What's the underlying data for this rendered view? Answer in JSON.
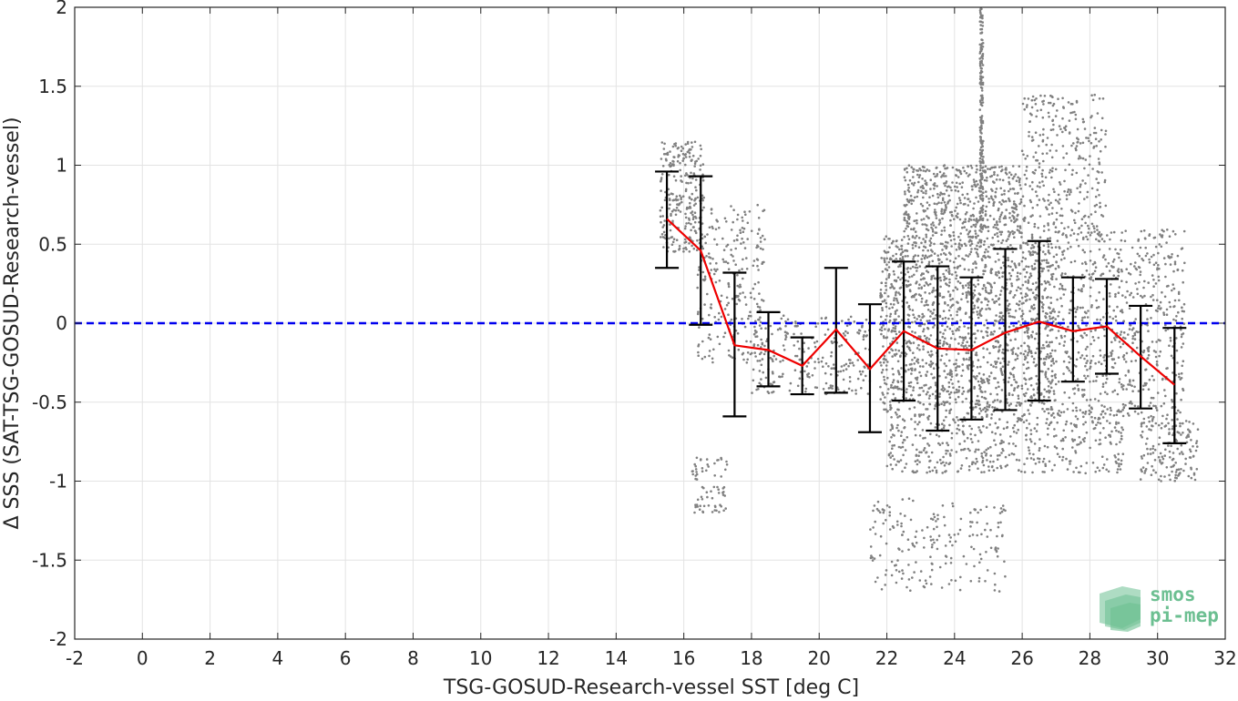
{
  "chart_data": {
    "type": "scatter",
    "title": "",
    "xlabel": "TSG-GOSUD-Research-vessel SST [deg C]",
    "ylabel": "Δ SSS (SAT-TSG-GOSUD-Research-vessel)",
    "xlim": [
      -2,
      32
    ],
    "ylim": [
      -2,
      2
    ],
    "xticks": [
      -2,
      0,
      2,
      4,
      6,
      8,
      10,
      12,
      14,
      16,
      18,
      20,
      22,
      24,
      26,
      28,
      30,
      32
    ],
    "yticks": [
      -2,
      -1.5,
      -1,
      -0.5,
      0,
      0.5,
      1,
      1.5,
      2
    ],
    "xtick_labels": [
      "-2",
      "0",
      "2",
      "4",
      "6",
      "8",
      "10",
      "12",
      "14",
      "16",
      "18",
      "20",
      "22",
      "24",
      "26",
      "28",
      "30",
      "32"
    ],
    "ytick_labels": [
      "-2",
      "-1.5",
      "-1",
      "-0.5",
      "0",
      "0.5",
      "1",
      "1.5",
      "2"
    ],
    "grid": true,
    "reference_line": {
      "y": 0,
      "style": "dashed",
      "color": "#0000ee"
    },
    "binned_stats": {
      "color_mean": "#ee0000",
      "color_errorbar": "#000000",
      "x": [
        15.5,
        16.5,
        17.5,
        18.5,
        19.5,
        20.5,
        21.5,
        22.5,
        23.5,
        24.5,
        25.5,
        26.5,
        27.5,
        28.5,
        29.5,
        30.5
      ],
      "mean": [
        0.66,
        0.46,
        -0.14,
        -0.17,
        -0.27,
        -0.04,
        -0.29,
        -0.05,
        -0.16,
        -0.17,
        -0.06,
        0.01,
        -0.05,
        -0.02,
        -0.21,
        -0.39
      ],
      "upper": [
        0.96,
        0.93,
        0.32,
        0.07,
        -0.09,
        0.35,
        0.12,
        0.39,
        0.36,
        0.29,
        0.47,
        0.52,
        0.29,
        0.28,
        0.11,
        -0.03
      ],
      "lower": [
        0.35,
        -0.01,
        -0.59,
        -0.4,
        -0.45,
        -0.44,
        -0.69,
        -0.49,
        -0.68,
        -0.61,
        -0.55,
        -0.49,
        -0.37,
        -0.32,
        -0.54,
        -0.76
      ]
    },
    "scatter_color": "#808080",
    "scatter_clusters": [
      {
        "x0": 15.3,
        "x1": 16.6,
        "y0": 0.45,
        "y1": 1.15,
        "n": 260
      },
      {
        "x0": 16.4,
        "x1": 18.4,
        "y0": -0.25,
        "y1": 0.75,
        "n": 260
      },
      {
        "x0": 18.0,
        "x1": 21.5,
        "y0": -0.45,
        "y1": 0.05,
        "n": 240
      },
      {
        "x0": 16.2,
        "x1": 17.3,
        "y0": -1.2,
        "y1": -0.85,
        "n": 70
      },
      {
        "x0": 21.8,
        "x1": 27.0,
        "y0": -0.55,
        "y1": 0.55,
        "n": 1700
      },
      {
        "x0": 22.5,
        "x1": 26.0,
        "y0": 0.55,
        "y1": 1.0,
        "n": 500
      },
      {
        "x0": 26.0,
        "x1": 28.5,
        "y0": 0.55,
        "y1": 1.45,
        "n": 320
      },
      {
        "x0": 27.0,
        "x1": 30.8,
        "y0": -0.6,
        "y1": 0.6,
        "n": 700
      },
      {
        "x0": 22.0,
        "x1": 29.0,
        "y0": -0.95,
        "y1": -0.55,
        "n": 500
      },
      {
        "x0": 29.5,
        "x1": 31.2,
        "y0": -1.0,
        "y1": -0.6,
        "n": 160
      },
      {
        "x0": 21.5,
        "x1": 25.5,
        "y0": -1.7,
        "y1": -1.1,
        "n": 200
      },
      {
        "x0": 24.75,
        "x1": 24.85,
        "y0": 0.6,
        "y1": 2.0,
        "n": 200
      }
    ],
    "logo": {
      "line1": "smos",
      "line2": "pi-mep",
      "color": "#6cbf91"
    }
  }
}
